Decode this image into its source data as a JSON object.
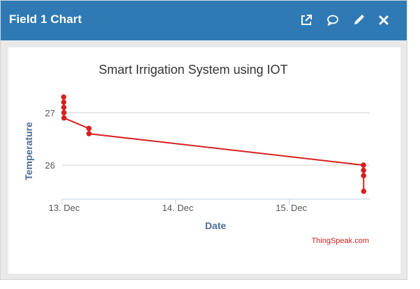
{
  "header": {
    "title": "Field 1 Chart",
    "background": "#2f7ab4",
    "actions": [
      {
        "name": "open-new-window",
        "icon": "external-link-icon"
      },
      {
        "name": "comment",
        "icon": "comment-icon"
      },
      {
        "name": "edit",
        "icon": "pencil-icon"
      },
      {
        "name": "close",
        "icon": "close-icon"
      }
    ]
  },
  "chart_data": {
    "type": "line",
    "title": "Smart Irrigation System using IOT",
    "xlabel": "Date",
    "ylabel": "Temperature",
    "x_type": "datetime",
    "x_range": [
      "2023-12-13T00:00",
      "2023-12-15T17:00"
    ],
    "xticks": [
      "13. Dec",
      "14. Dec",
      "15. Dec"
    ],
    "ylim": [
      25.35,
      27.45
    ],
    "yticks": [
      26,
      27
    ],
    "grid": true,
    "legend": "none",
    "credit": "ThingSpeak.com",
    "series": [
      {
        "color": "#d62020",
        "points": [
          {
            "x": "2023-12-13T00:20",
            "y": 27.3
          },
          {
            "x": "2023-12-13T00:21",
            "y": 27.2
          },
          {
            "x": "2023-12-13T00:22",
            "y": 27.1
          },
          {
            "x": "2023-12-13T00:23",
            "y": 27.0
          },
          {
            "x": "2023-12-13T00:24",
            "y": 26.9
          },
          {
            "x": "2023-12-13T05:40",
            "y": 26.7
          },
          {
            "x": "2023-12-13T05:41",
            "y": 26.6
          },
          {
            "x": "2023-12-15T15:40",
            "y": 26.0
          },
          {
            "x": "2023-12-15T15:41",
            "y": 25.9
          },
          {
            "x": "2023-12-15T15:42",
            "y": 25.8
          },
          {
            "x": "2023-12-15T15:43",
            "y": 25.5
          }
        ]
      }
    ]
  }
}
